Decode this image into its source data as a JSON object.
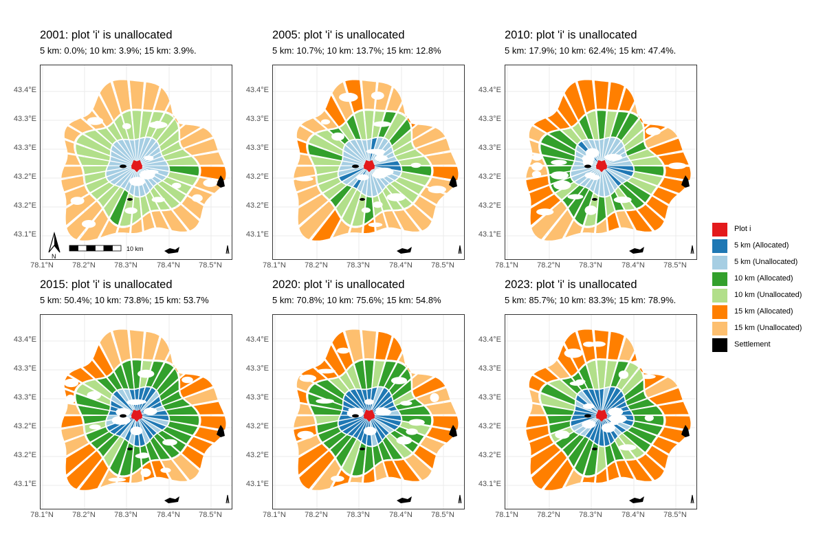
{
  "panels": [
    {
      "title": "2001: plot 'i' is unallocated",
      "subtitle": "5 km: 0.0%; 10 km: 3.9%; 15 km: 3.9%.",
      "pct5": 0.0,
      "pct10": 3.9,
      "pct15": 3.9,
      "show_scalebar": true
    },
    {
      "title": "2005: plot 'i' is unallocated",
      "subtitle": "5 km: 10.7%; 10 km: 13.7%; 15 km: 12.8%",
      "pct5": 10.7,
      "pct10": 13.7,
      "pct15": 12.8,
      "show_scalebar": false
    },
    {
      "title": "2010: plot 'i' is unallocated",
      "subtitle": "5 km: 17.9%; 10 km: 62.4%; 15 km: 47.4%.",
      "pct5": 17.9,
      "pct10": 62.4,
      "pct15": 47.4,
      "show_scalebar": false
    },
    {
      "title": "2015: plot 'i' is unallocated",
      "subtitle": "5 km: 50.4%; 10 km: 73.8%; 15 km: 53.7%",
      "pct5": 50.4,
      "pct10": 73.8,
      "pct15": 53.7,
      "show_scalebar": false
    },
    {
      "title": "2020: plot 'i' is unallocated",
      "subtitle": "5 km: 70.8%; 10 km: 75.6%; 15 km: 54.8%",
      "pct5": 70.8,
      "pct10": 75.6,
      "pct15": 54.8,
      "show_scalebar": false
    },
    {
      "title": "2023: plot 'i' is unallocated",
      "subtitle": "5 km: 85.7%; 10 km: 83.3%; 15 km: 78.9%.",
      "pct5": 85.7,
      "pct10": 83.3,
      "pct15": 78.9,
      "show_scalebar": false
    }
  ],
  "y_ticks": [
    "43.4°E",
    "43.3°E",
    "43.3°E",
    "43.2°E",
    "43.2°E",
    "43.1°E"
  ],
  "x_ticks": [
    "78.1°N",
    "78.2°N",
    "78.3°N",
    "78.4°N",
    "78.5°N"
  ],
  "scalebar_label": "10 km",
  "north_label": "N",
  "legend": [
    {
      "label": "Plot i",
      "color": "#e31a1c"
    },
    {
      "label": "5 km (Allocated)",
      "color": "#1f78b4"
    },
    {
      "label": "5 km (Unallocated)",
      "color": "#a6cee3"
    },
    {
      "label": "10 km (Allocated)",
      "color": "#33a02c"
    },
    {
      "label": "10 km (Unallocated)",
      "color": "#b2df8a"
    },
    {
      "label": "15 km (Allocated)",
      "color": "#ff7f00"
    },
    {
      "label": "15 km (Unallocated)",
      "color": "#fdbf6f"
    },
    {
      "label": "Settlement",
      "color": "#000000"
    }
  ]
}
